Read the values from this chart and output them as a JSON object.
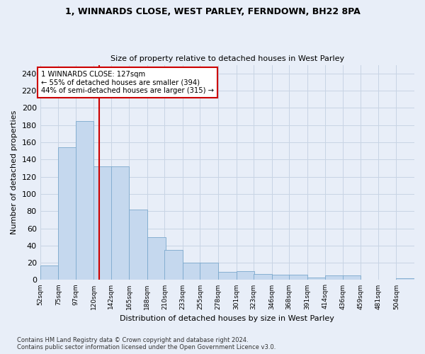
{
  "title_line1": "1, WINNARDS CLOSE, WEST PARLEY, FERNDOWN, BH22 8PA",
  "title_line2": "Size of property relative to detached houses in West Parley",
  "xlabel": "Distribution of detached houses by size in West Parley",
  "ylabel": "Number of detached properties",
  "footer_line1": "Contains HM Land Registry data © Crown copyright and database right 2024.",
  "footer_line2": "Contains public sector information licensed under the Open Government Licence v3.0.",
  "bin_edges": [
    52,
    75,
    97,
    120,
    142,
    165,
    188,
    210,
    233,
    255,
    278,
    301,
    323,
    346,
    368,
    391,
    414,
    436,
    459,
    481,
    504
  ],
  "bar_values": [
    17,
    154,
    185,
    132,
    132,
    82,
    50,
    35,
    20,
    20,
    9,
    10,
    7,
    6,
    6,
    3,
    5,
    5,
    0,
    0,
    2
  ],
  "bar_color": "#c5d8ee",
  "bar_edge_color": "#7aa8cc",
  "vline_x": 127,
  "vline_color": "#cc0000",
  "annotation_line1": "1 WINNARDS CLOSE: 127sqm",
  "annotation_line2": "← 55% of detached houses are smaller (394)",
  "annotation_line3": "44% of semi-detached houses are larger (315) →",
  "annotation_box_color": "#ffffff",
  "annotation_box_edge_color": "#cc0000",
  "ylim": [
    0,
    250
  ],
  "yticks": [
    0,
    20,
    40,
    60,
    80,
    100,
    120,
    140,
    160,
    180,
    200,
    220,
    240
  ],
  "grid_color": "#c8d4e4",
  "background_color": "#e8eef8",
  "axes_background": "#e8eef8"
}
